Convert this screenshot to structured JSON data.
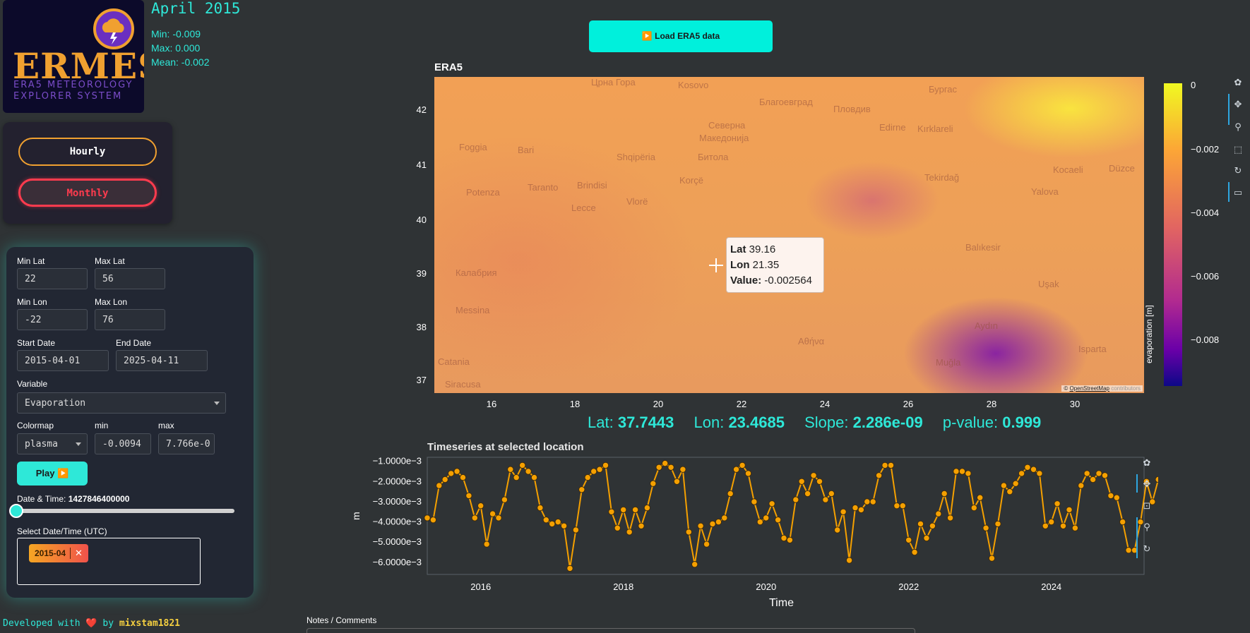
{
  "logo": {
    "word": "ERMES",
    "line1": "ERA5 METEOROLOGY",
    "line2": "EXPLORER SYSTEM"
  },
  "stats": {
    "title": "April 2015",
    "min": "Min: -0.009",
    "max": "Max: 0.000",
    "mean": "Mean: -0.002"
  },
  "frequency": {
    "hourly": "Hourly",
    "monthly": "Monthly",
    "selected": "Monthly"
  },
  "controls": {
    "min_lat_label": "Min Lat",
    "min_lat": "22",
    "max_lat_label": "Max Lat",
    "max_lat": "56",
    "min_lon_label": "Min Lon",
    "min_lon": "-22",
    "max_lon_label": "Max Lon",
    "max_lon": "76",
    "start_label": "Start Date",
    "start": "2015-04-01",
    "end_label": "End Date",
    "end": "2025-04-11",
    "variable_label": "Variable",
    "variable": "Evaporation",
    "colormap_label": "Colormap",
    "colormap": "plasma",
    "cmin_label": "min",
    "cmin": "-0.0094",
    "cmax_label": "max",
    "cmax": "7.766e-0",
    "play": "Play ▶️",
    "datetime_label": "Date & Time:",
    "datetime_value": "1427846400000",
    "slider_fraction": 0.0,
    "select_label": "Select Date/Time (UTC)",
    "selected_chip": "2015-04",
    "chip_remove": "✕"
  },
  "footer": {
    "prefix": "Developed with",
    "heart": "❤️",
    "by": "by",
    "author": "mixstam1821"
  },
  "load_button": "▶️ Load ERA5 data",
  "map": {
    "title": "ERA5",
    "lat_ticks": [
      "42",
      "41",
      "40",
      "39",
      "38",
      "37"
    ],
    "lon_ticks": [
      "16",
      "18",
      "20",
      "22",
      "24",
      "26",
      "28",
      "30"
    ],
    "attribution_symbol": "©",
    "attribution_link": "OpenStreetMap",
    "attribution_rest": "contributors",
    "place_labels": [
      "Црна Гора",
      "Kosovo",
      "Благоевград",
      "Пловдив",
      "Бургас",
      "Foggia",
      "Bari",
      "Shqipëria",
      "Северна",
      "Македонија",
      "Битола",
      "Kocaeli",
      "Düzce",
      "Potenza",
      "Taranto",
      "Brindisi",
      "Lecce",
      "Vlorë",
      "Tekirdağ",
      "Yalova",
      "Balıkesir",
      "Messina",
      "Aydın",
      "Αθήνα",
      "Isparta",
      "Catania",
      "Siracusa",
      "Muğla",
      "Uşak",
      "Korçë",
      "Edirne",
      "Kırklareli",
      "Калабрия"
    ]
  },
  "tooltip": {
    "lat_label": "Lat",
    "lat": "39.16",
    "lon_label": "Lon",
    "lon": "21.35",
    "value_label": "Value:",
    "value": "-0.002564"
  },
  "colorbar": {
    "title": "evaporation [m]",
    "ticks": [
      "0",
      "−0.002",
      "−0.004",
      "−0.006",
      "−0.008"
    ],
    "colormap": "plasma"
  },
  "info": {
    "lat_label": "Lat:",
    "lat": "37.7443",
    "lon_label": "Lon:",
    "lon": "23.4685",
    "slope_label": "Slope:",
    "slope": "2.286e-09",
    "p_label": "p-value:",
    "p": "0.999"
  },
  "timeseries": {
    "title": "Timeseries at selected location",
    "xlabel": "Time",
    "ylabel": "m"
  },
  "notes_label": "Notes / Comments",
  "chart_data": {
    "type": "line",
    "title": "Timeseries at selected location",
    "xlabel": "Time",
    "ylabel": "m",
    "xlim": [
      2015.25,
      2025.3
    ],
    "ylim": [
      -0.0066,
      -0.0008
    ],
    "x_ticks": [
      "2016",
      "2018",
      "2020",
      "2022",
      "2024"
    ],
    "y_ticks": [
      "−1.0000e−3",
      "−2.0000e−3",
      "−3.0000e−3",
      "−4.0000e−3",
      "−5.0000e−3",
      "−6.0000e−3"
    ],
    "color": "#f5a000",
    "series": [
      {
        "x_start": 2015.25,
        "x_step_months": 1,
        "values": [
          -0.0038,
          -0.0039,
          -0.0022,
          -0.0019,
          -0.0016,
          -0.0015,
          -0.0018,
          -0.0027,
          -0.0038,
          -0.0032,
          -0.0051,
          -0.0036,
          -0.0038,
          -0.0029,
          -0.0014,
          -0.0018,
          -0.0012,
          -0.0015,
          -0.0018,
          -0.0033,
          -0.0039,
          -0.0041,
          -0.004,
          -0.0042,
          -0.0063,
          -0.0044,
          -0.0024,
          -0.0018,
          -0.0015,
          -0.0014,
          -0.0012,
          -0.0035,
          -0.0043,
          -0.0034,
          -0.0045,
          -0.0034,
          -0.0042,
          -0.0033,
          -0.0021,
          -0.0013,
          -0.0011,
          -0.0013,
          -0.002,
          -0.0014,
          -0.0045,
          -0.0061,
          -0.0042,
          -0.0051,
          -0.0041,
          -0.004,
          -0.0038,
          -0.0026,
          -0.0014,
          -0.0012,
          -0.0016,
          -0.003,
          -0.004,
          -0.0038,
          -0.0031,
          -0.0039,
          -0.0048,
          -0.0049,
          -0.0029,
          -0.002,
          -0.0026,
          -0.0017,
          -0.002,
          -0.0029,
          -0.0026,
          -0.0044,
          -0.0035,
          -0.0059,
          -0.0033,
          -0.0034,
          -0.003,
          -0.003,
          -0.0017,
          -0.0012,
          -0.0012,
          -0.0032,
          -0.0032,
          -0.0049,
          -0.0055,
          -0.0041,
          -0.0048,
          -0.0042,
          -0.0036,
          -0.0026,
          -0.0038,
          -0.0015,
          -0.0015,
          -0.0016,
          -0.0033,
          -0.0028,
          -0.0043,
          -0.0058,
          -0.0041,
          -0.0022,
          -0.0025,
          -0.0021,
          -0.0016,
          -0.0013,
          -0.0014,
          -0.0016,
          -0.0042,
          -0.004,
          -0.0031,
          -0.0042,
          -0.0034,
          -0.0043,
          -0.0022,
          -0.0016,
          -0.0019,
          -0.0016,
          -0.0017,
          -0.0027,
          -0.0028,
          -0.004,
          -0.0054,
          -0.0054,
          -0.004,
          -0.002,
          -0.003,
          -0.0019,
          -0.002,
          -0.0013
        ]
      }
    ]
  }
}
